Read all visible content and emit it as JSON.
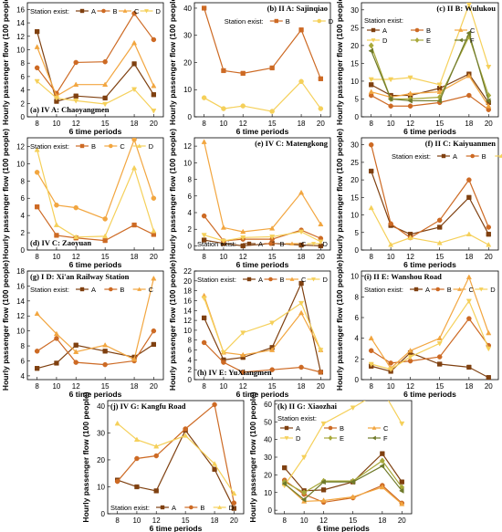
{
  "figure": {
    "ylabel": "Hourly passenger flow (100 people)",
    "xlabel": "6 time periods",
    "legend_prefix": "Station exist:"
  },
  "series_colors": {
    "A": "#7f4010",
    "B": "#cd6a24",
    "C": "#f2a640",
    "D": "#f5d05a",
    "E": "#a8a83a",
    "F": "#6f7a2a"
  },
  "chart_data": [
    {
      "id": "a",
      "type": "line",
      "title": "(a) IV A: Chaoyangmen",
      "x": [
        8,
        10,
        12,
        15,
        18,
        20
      ],
      "ylim": [
        0,
        17
      ],
      "yticks": [
        0,
        2,
        4,
        6,
        8,
        10,
        12,
        14,
        16
      ],
      "legend_position": "top-left",
      "series": [
        {
          "name": "A",
          "marker": "square",
          "values": [
            12.7,
            2.3,
            3.1,
            2.8,
            7.9,
            3.3
          ]
        },
        {
          "name": "B",
          "marker": "circle",
          "values": [
            7.3,
            3.5,
            8.1,
            8.2,
            15.4,
            11.5
          ]
        },
        {
          "name": "C",
          "marker": "triangle",
          "values": [
            10.4,
            3.1,
            4.8,
            4.8,
            11.0,
            4.6
          ]
        },
        {
          "name": "D",
          "marker": "triangle-down",
          "values": [
            5.3,
            2.8,
            2.4,
            1.9,
            4.1,
            0.9
          ]
        }
      ]
    },
    {
      "id": "b",
      "type": "line",
      "title": "(b) II A: Sajinqiao",
      "x": [
        8,
        10,
        12,
        15,
        18,
        20
      ],
      "ylim": [
        0,
        42
      ],
      "yticks": [
        0,
        10,
        20,
        30,
        40
      ],
      "legend_position": "top-right",
      "series": [
        {
          "name": "B",
          "marker": "square",
          "values": [
            40,
            17,
            16,
            18,
            32,
            14
          ]
        },
        {
          "name": "D",
          "marker": "circle",
          "values": [
            7,
            3,
            4,
            2,
            13,
            3
          ]
        }
      ]
    },
    {
      "id": "c",
      "type": "line",
      "title": "(c) II B: Wulukou",
      "x": [
        8,
        10,
        12,
        15,
        18,
        20
      ],
      "ylim": [
        0,
        32
      ],
      "yticks": [
        0,
        5,
        10,
        15,
        20,
        25,
        30
      ],
      "legend_position": "top",
      "series": [
        {
          "name": "A",
          "marker": "square",
          "values": [
            9.0,
            6.0,
            6.0,
            8.0,
            12.0,
            4.0
          ]
        },
        {
          "name": "B",
          "marker": "circle",
          "values": [
            6.0,
            3.0,
            3.0,
            4.0,
            6.0,
            2.0
          ]
        },
        {
          "name": "C",
          "marker": "triangle",
          "values": [
            7.0,
            5.5,
            6.5,
            7.0,
            11.5,
            3.0
          ]
        },
        {
          "name": "D",
          "marker": "triangle-down",
          "values": [
            10.5,
            10.5,
            11.0,
            9.0,
            31.5,
            14.0
          ]
        },
        {
          "name": "E",
          "marker": "diamond",
          "values": [
            20.0,
            5.0,
            5.0,
            5.5,
            22.5,
            6.0
          ]
        },
        {
          "name": "F",
          "marker": "triangle-left",
          "values": [
            18.5,
            5.0,
            4.5,
            4.5,
            23.5,
            4.5
          ]
        }
      ]
    },
    {
      "id": "d",
      "type": "line",
      "title": "(d) IV C: Zaoyuan",
      "x": [
        8,
        10,
        12,
        15,
        18,
        20
      ],
      "ylim": [
        0,
        13
      ],
      "yticks": [
        0,
        2,
        4,
        6,
        8,
        10,
        12
      ],
      "legend_position": "top",
      "series": [
        {
          "name": "B",
          "marker": "square",
          "values": [
            5.0,
            1.7,
            1.4,
            1.1,
            2.9,
            1.8
          ]
        },
        {
          "name": "C",
          "marker": "circle",
          "values": [
            9.0,
            5.2,
            4.9,
            3.6,
            12.8,
            6.0
          ]
        },
        {
          "name": "D",
          "marker": "triangle",
          "values": [
            11.6,
            2.9,
            1.5,
            1.6,
            9.5,
            2.2
          ]
        }
      ]
    },
    {
      "id": "e",
      "type": "line",
      "title": "(e) IV C: Matengkong",
      "x": [
        8,
        10,
        12,
        15,
        18,
        20
      ],
      "ylim": [
        -0.5,
        13
      ],
      "yticks": [
        0,
        2,
        4,
        6,
        8,
        10,
        12
      ],
      "legend_position": "bottom",
      "series": [
        {
          "name": "A",
          "marker": "square",
          "values": [
            0.7,
            0.3,
            0.0,
            0.3,
            0.1,
            0.0
          ]
        },
        {
          "name": "B",
          "marker": "circle",
          "values": [
            3.6,
            0.6,
            0.8,
            0.8,
            1.9,
            0.9
          ]
        },
        {
          "name": "C",
          "marker": "triangle",
          "values": [
            12.5,
            2.2,
            1.7,
            2.1,
            6.4,
            2.6
          ]
        },
        {
          "name": "D",
          "marker": "triangle-down",
          "values": [
            1.3,
            0.6,
            1.0,
            1.1,
            1.7,
            0.5
          ]
        }
      ]
    },
    {
      "id": "f",
      "type": "line",
      "title": "(f) II C: Kaiyuanmen",
      "x": [
        8,
        10,
        12,
        15,
        18,
        20
      ],
      "ylim": [
        0,
        32
      ],
      "yticks": [
        0,
        5,
        10,
        15,
        20,
        25,
        30
      ],
      "legend_position": "top-right",
      "series": [
        {
          "name": "A",
          "marker": "square",
          "values": [
            22.5,
            7.0,
            4.5,
            6.5,
            15.0,
            4.5
          ]
        },
        {
          "name": "B",
          "marker": "circle",
          "values": [
            30.0,
            7.5,
            3.5,
            8.5,
            20.0,
            6.5
          ]
        },
        {
          "name": "D",
          "marker": "triangle",
          "values": [
            12.0,
            1.5,
            3.5,
            2.0,
            4.5,
            1.5
          ]
        }
      ]
    },
    {
      "id": "g",
      "type": "line",
      "title": "(g) I D: Xi'an Railway Station",
      "x": [
        8,
        10,
        12,
        15,
        18,
        20
      ],
      "ylim": [
        3.5,
        18
      ],
      "yticks": [
        4,
        6,
        8,
        10,
        12,
        14,
        16,
        18
      ],
      "legend_position": "top",
      "series": [
        {
          "name": "A",
          "marker": "square",
          "values": [
            5.0,
            5.7,
            8.1,
            7.3,
            6.5,
            8.2
          ]
        },
        {
          "name": "B",
          "marker": "circle",
          "values": [
            7.3,
            9.0,
            5.8,
            5.5,
            6.0,
            10.0
          ]
        },
        {
          "name": "C",
          "marker": "triangle",
          "values": [
            12.3,
            9.6,
            7.2,
            8.1,
            6.2,
            17.0
          ]
        }
      ]
    },
    {
      "id": "h",
      "type": "line",
      "title": "(h) IV E: YuXiangmen",
      "x": [
        8,
        10,
        12,
        15,
        18,
        20
      ],
      "ylim": [
        0,
        22
      ],
      "yticks": [
        0,
        2,
        4,
        6,
        8,
        10,
        12,
        14,
        16,
        18,
        20,
        22
      ],
      "legend_position": "top",
      "series": [
        {
          "name": "A",
          "marker": "square",
          "values": [
            12.5,
            4.0,
            4.5,
            6.5,
            19.5,
            1.5
          ]
        },
        {
          "name": "B",
          "marker": "circle",
          "values": [
            7.5,
            3.5,
            1.5,
            2.0,
            2.5,
            1.5
          ]
        },
        {
          "name": "C",
          "marker": "triangle",
          "values": [
            17.0,
            5.5,
            5.0,
            6.0,
            13.5,
            6.0
          ]
        },
        {
          "name": "D",
          "marker": "triangle-down",
          "values": [
            16.5,
            5.5,
            9.5,
            11.5,
            15.5,
            6.0
          ]
        }
      ]
    },
    {
      "id": "i",
      "type": "line",
      "title": "(i) II E: Wanshou Road",
      "x": [
        8,
        10,
        12,
        15,
        18,
        20
      ],
      "ylim": [
        0,
        10.5
      ],
      "yticks": [
        0,
        2,
        4,
        6,
        8,
        10
      ],
      "legend_position": "top",
      "series": [
        {
          "name": "A",
          "marker": "square",
          "values": [
            1.3,
            0.8,
            2.6,
            1.5,
            1.2,
            0.2
          ]
        },
        {
          "name": "B",
          "marker": "circle",
          "values": [
            2.8,
            1.6,
            1.8,
            2.2,
            5.9,
            3.3
          ]
        },
        {
          "name": "C",
          "marker": "triangle",
          "values": [
            4.0,
            1.1,
            2.8,
            4.0,
            9.9,
            4.5
          ]
        },
        {
          "name": "D",
          "marker": "triangle-down",
          "values": [
            1.5,
            1.0,
            2.2,
            3.5,
            7.6,
            3.0
          ]
        }
      ]
    },
    {
      "id": "j",
      "type": "line",
      "title": "(j) IV G: Kangfu Road",
      "x": [
        8,
        10,
        12,
        15,
        18,
        20
      ],
      "ylim": [
        0,
        42
      ],
      "yticks": [
        0,
        10,
        20,
        30,
        40
      ],
      "legend_position": "bottom",
      "series": [
        {
          "name": "A",
          "marker": "square",
          "values": [
            12.5,
            10.0,
            8.5,
            31.0,
            16.5,
            2.0
          ]
        },
        {
          "name": "B",
          "marker": "circle",
          "values": [
            12.0,
            20.5,
            21.5,
            31.5,
            40.5,
            4.0
          ]
        },
        {
          "name": "D",
          "marker": "triangle",
          "values": [
            33.5,
            27.5,
            25.0,
            29.0,
            18.5,
            7.5
          ]
        }
      ]
    },
    {
      "id": "k",
      "type": "line",
      "title": "(k) II G: Xiaozhai",
      "x": [
        8,
        10,
        12,
        15,
        18,
        20
      ],
      "ylim": [
        -2,
        62
      ],
      "yticks": [
        0,
        10,
        20,
        30,
        40,
        50,
        60
      ],
      "legend_position": "top",
      "series": [
        {
          "name": "A",
          "marker": "square",
          "values": [
            24.0,
            11.0,
            11.5,
            16.0,
            32.0,
            16.0
          ]
        },
        {
          "name": "B",
          "marker": "circle",
          "values": [
            17.0,
            9.0,
            4.5,
            7.0,
            14.0,
            4.0
          ]
        },
        {
          "name": "C",
          "marker": "triangle",
          "values": [
            15.0,
            5.0,
            5.5,
            7.5,
            13.0,
            3.5
          ]
        },
        {
          "name": "D",
          "marker": "triangle-down",
          "values": [
            14.0,
            30.0,
            49.0,
            58.0,
            68.0,
            49.0
          ]
        },
        {
          "name": "E",
          "marker": "diamond",
          "values": [
            16.0,
            10.0,
            16.5,
            16.5,
            28.0,
            13.0
          ]
        },
        {
          "name": "F",
          "marker": "triangle-left",
          "values": [
            15.0,
            6.0,
            16.0,
            16.0,
            25.0,
            11.0
          ]
        }
      ]
    }
  ]
}
